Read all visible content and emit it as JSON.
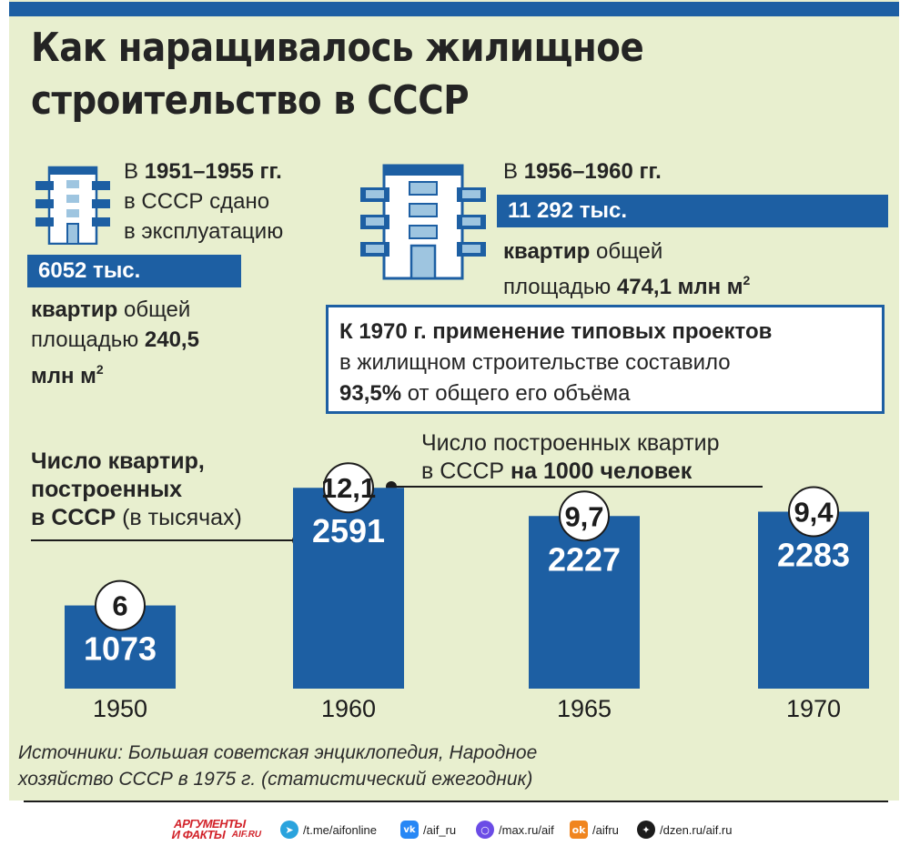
{
  "title": {
    "line1": "Как наращивалось жилищное",
    "line2": "строительство в СССР"
  },
  "block_1951": {
    "line1_prefix": "В ",
    "line1_bold": "1951–1955 гг.",
    "line2": "в СССР сдано",
    "line3": "в эксплуатацию",
    "band": "6052 тыс.",
    "line4_bold": "квартир",
    "line4_rest": " общей",
    "line5_prefix": "площадью ",
    "line5_bold": "240,5",
    "line6_bold": "млн м",
    "line6_sup": "2"
  },
  "block_1956": {
    "line1_prefix": "В ",
    "line1_bold": "1956–1960 гг.",
    "band": "11 292 тыс.",
    "line2_bold": "квартир",
    "line2_rest": " общей",
    "line3_prefix": "площадью ",
    "line3_bold": "474,1 млн м",
    "line3_sup": "2"
  },
  "box_1970": {
    "line1_bold": "К 1970 г. применение типовых проектов",
    "line2": "в жилищном строительстве составило",
    "line3_bold": "93,5%",
    "line3_rest": " от общего его объёма"
  },
  "legend": {
    "bars_line1": "Число квартир,",
    "bars_line2": "построенных",
    "bars_line3_bold": "в СССР",
    "bars_line3_rest": " (в тысячах)",
    "circles_line1": "Число построенных квартир",
    "circles_line2_prefix": "в СССР ",
    "circles_line2_bold": "на 1000 человек"
  },
  "chart_data": {
    "type": "bar",
    "categories": [
      "1950",
      "1960",
      "1965",
      "1970"
    ],
    "series": [
      {
        "values": [
          1073,
          2591,
          2227,
          2283
        ]
      },
      {
        "values": [
          6,
          12.1,
          9.7,
          9.4
        ]
      }
    ],
    "value_labels": [
      "1073",
      "2591",
      "2227",
      "2283"
    ],
    "per_1000_labels": [
      "6",
      "12,1",
      "9,7",
      "9,4"
    ],
    "bar_color": "#1d5fa3"
  },
  "source": {
    "line1": "Источники: Большая советская энциклопедия, Народное",
    "line2": "хозяйство СССР в 1975 г. (статистический ежегодник)"
  },
  "footer": {
    "logo_line1": "АРГУМЕНТЫ",
    "logo_line2": "И ФАКТЫ",
    "logo_line3": "AIF.RU",
    "links": [
      {
        "icon": "telegram-icon",
        "label": "/t.me/aifonline",
        "color": "#2aa3dd"
      },
      {
        "icon": "vk-icon",
        "label": "/aif_ru",
        "color": "#2787f5"
      },
      {
        "icon": "max-icon",
        "label": "/max.ru/aif",
        "color": "#6b4ce6"
      },
      {
        "icon": "odnoklassniki-icon",
        "label": "/aifru",
        "color": "#f0851f"
      },
      {
        "icon": "dzen-icon",
        "label": "/dzen.ru/aif.ru",
        "color": "#1c1c1c"
      }
    ]
  }
}
